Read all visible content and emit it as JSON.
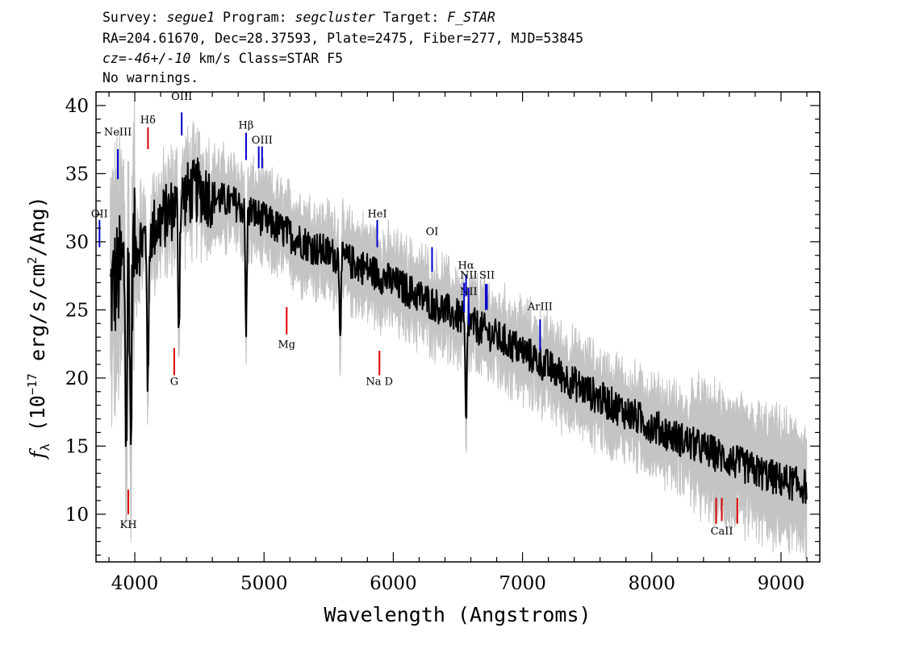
{
  "header": {
    "survey_label": "Survey:",
    "survey": "segue1",
    "program_label": "Program:",
    "program": "segcluster",
    "target_label": "Target:",
    "target": "F_STAR",
    "line2": "RA=204.61670, Dec=28.37593, Plate=2475, Fiber=277, MJD=53845",
    "cz_label": "cz=",
    "cz_value": "-46+/-10",
    "cz_rest": " km/s Class=STAR F5",
    "line4": "No warnings."
  },
  "chart_data": {
    "type": "line",
    "xlabel": "Wavelength (Angstroms)",
    "ylabel": "f_λ (10^-17 erg/s/cm^2/Ang)",
    "ylabel_parts": {
      "f": "f",
      "lambda": "λ",
      "pre": " (10",
      "exp1": "−17",
      "mid": " erg/s/cm",
      "exp2": "2",
      "post": "/Ang)"
    },
    "xlim": [
      3700,
      9300
    ],
    "ylim": [
      6.5,
      41
    ],
    "x_ticks": [
      4000,
      5000,
      6000,
      7000,
      8000,
      9000
    ],
    "y_ticks": [
      10,
      15,
      20,
      25,
      30,
      35,
      40
    ],
    "x_tick_labels": [
      "4000",
      "5000",
      "6000",
      "7000",
      "8000",
      "9000"
    ],
    "y_tick_labels": [
      "10",
      "15",
      "20",
      "25",
      "30",
      "35",
      "40"
    ],
    "colors": {
      "flux": "#000000",
      "error": "#c4c4c4",
      "emission": "#0000cc",
      "absorption": "#dd0000"
    },
    "continuum": {
      "x": [
        3800,
        3900,
        4000,
        4100,
        4200,
        4300,
        4400,
        4500,
        4600,
        4700,
        4800,
        4900,
        5000,
        5200,
        5400,
        5600,
        5800,
        6000,
        6200,
        6400,
        6600,
        6800,
        7000,
        7200,
        7400,
        7600,
        7800,
        8000,
        8200,
        8400,
        8600,
        8800,
        9000,
        9200
      ],
      "y": [
        26.0,
        28.0,
        29.5,
        30.5,
        31.5,
        32.5,
        33.5,
        33.8,
        33.3,
        33.0,
        32.7,
        32.2,
        31.6,
        30.5,
        29.5,
        28.8,
        28.0,
        27.0,
        26.0,
        25.0,
        24.0,
        23.0,
        22.0,
        20.8,
        19.6,
        18.5,
        17.5,
        16.5,
        15.6,
        14.8,
        14.0,
        13.2,
        12.5,
        12.0
      ]
    },
    "absorption_features": [
      {
        "x": 3934,
        "depth": 14
      },
      {
        "x": 3969,
        "depth": 14
      },
      {
        "x": 4102,
        "depth": 12
      },
      {
        "x": 4341,
        "depth": 9
      },
      {
        "x": 4861,
        "depth": 9
      },
      {
        "x": 5590,
        "depth": 5
      },
      {
        "x": 6563,
        "depth": 8
      }
    ],
    "line_labels": [
      {
        "text": "NeIII",
        "x": 3869,
        "label_y": 37.8,
        "tick_y": [
          34.6,
          36.8
        ],
        "color": "emission"
      },
      {
        "text": "OII",
        "x": 3727,
        "label_y": 31.8,
        "tick_y": [
          29.6,
          31.6
        ],
        "color": "emission"
      },
      {
        "text": "Hδ",
        "x": 4102,
        "label_y": 38.7,
        "tick_y": [
          36.8,
          38.4
        ],
        "color": "absorption"
      },
      {
        "text": "OIII",
        "x": 4363,
        "label_y": 40.4,
        "tick_y": [
          37.8,
          39.5
        ],
        "color": "emission"
      },
      {
        "text": "Hβ",
        "x": 4861,
        "label_y": 38.3,
        "tick_y": [
          36.0,
          38.0
        ],
        "color": "emission"
      },
      {
        "text": "OIII",
        "x": 4985,
        "label_y": 37.2,
        "tick_y": [
          35.4,
          37.0
        ],
        "color": "emission"
      },
      {
        "text": "HeI",
        "x": 5876,
        "label_y": 31.8,
        "tick_y": [
          29.6,
          31.6
        ],
        "color": "emission"
      },
      {
        "text": "OI",
        "x": 6300,
        "label_y": 30.5,
        "tick_y": [
          27.8,
          29.6
        ],
        "color": "emission"
      },
      {
        "text": "Hα",
        "x": 6563,
        "label_y": 28.0,
        "tick_y": [
          26.0,
          27.6
        ],
        "color": "emission"
      },
      {
        "text": "NII",
        "x": 6583,
        "label_y": 27.3,
        "tick_y": [
          23.9,
          26.6
        ],
        "color": "emission"
      },
      {
        "text": "SII",
        "x": 6725,
        "label_y": 27.3,
        "tick_y": [
          25.0,
          26.9
        ],
        "color": "emission"
      },
      {
        "text": "NII",
        "x": 6583,
        "label_y": 26.1,
        "tick_y": [
          24.3,
          25.6
        ],
        "color": "emission"
      },
      {
        "text": "ArIII",
        "x": 7136,
        "label_y": 25.0,
        "tick_y": [
          22.0,
          24.3
        ],
        "color": "emission"
      },
      {
        "text": "Mg",
        "x": 5175,
        "label_y": 22.2,
        "tick_y": [
          23.2,
          25.2
        ],
        "color": "absorption"
      },
      {
        "text": "G",
        "x": 4305,
        "label_y": 19.5,
        "tick_y": [
          20.2,
          22.2
        ],
        "color": "absorption"
      },
      {
        "text": "Na D",
        "x": 5893,
        "label_y": 19.5,
        "tick_y": [
          20.2,
          22.0
        ],
        "color": "absorption"
      },
      {
        "text": "KH",
        "x": 3950,
        "label_y": 9.0,
        "tick_y": [
          10.0,
          11.8
        ],
        "color": "absorption"
      },
      {
        "text": "CaII",
        "x": 8542,
        "label_y": 8.5,
        "tick_y": [
          9.5,
          11.2
        ],
        "color": "absorption"
      }
    ],
    "extra_ticks": [
      {
        "x": 4959,
        "tick_y": [
          35.4,
          37.0
        ],
        "color": "emission"
      },
      {
        "x": 6548,
        "tick_y": [
          24.8,
          27.0
        ],
        "color": "emission"
      },
      {
        "x": 6716,
        "tick_y": [
          25.0,
          26.9
        ],
        "color": "emission"
      },
      {
        "x": 8498,
        "tick_y": [
          9.3,
          11.2
        ],
        "color": "absorption"
      },
      {
        "x": 8662,
        "tick_y": [
          9.3,
          11.2
        ],
        "color": "absorption"
      }
    ],
    "grid": false,
    "legend": "none"
  }
}
